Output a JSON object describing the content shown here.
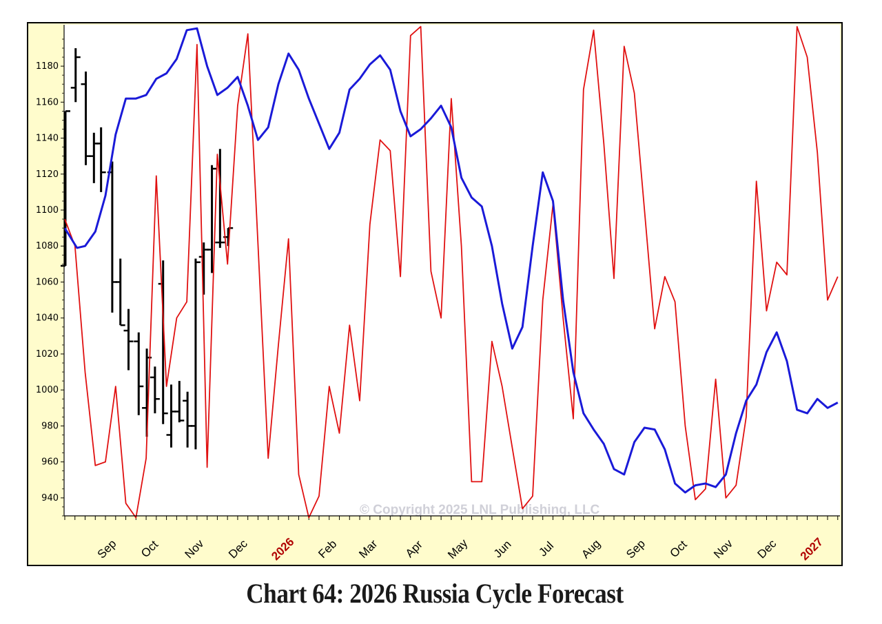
{
  "caption": "Chart 64: 2026 Russia Cycle Forecast",
  "copyright": "© Copyright 2025 LNL Publishing, LLC",
  "colors": {
    "panel_bg": "#fffccc",
    "plot_bg": "#ffffff",
    "cycle_blue": "#1a1ad8",
    "cycle_red": "#e01010",
    "price_bars": "#000000",
    "year_label": "#b00000"
  },
  "chart_data": {
    "type": "line",
    "ylim": [
      930,
      1203
    ],
    "yticks": [
      940,
      960,
      980,
      1000,
      1020,
      1040,
      1060,
      1080,
      1100,
      1120,
      1140,
      1160,
      1180
    ],
    "x_unit": "weeks from 2025-08-01",
    "xlim": [
      0,
      77
    ],
    "month_labels": [
      {
        "label": "Sep",
        "x": 4.4,
        "year": false
      },
      {
        "label": "Oct",
        "x": 8.6,
        "year": false
      },
      {
        "label": "Nov",
        "x": 13.0,
        "year": false
      },
      {
        "label": "Dec",
        "x": 17.3,
        "year": false
      },
      {
        "label": "2026",
        "x": 21.7,
        "year": true
      },
      {
        "label": "Feb",
        "x": 26.1,
        "year": false
      },
      {
        "label": "Mar",
        "x": 30.1,
        "year": false
      },
      {
        "label": "Apr",
        "x": 34.6,
        "year": false
      },
      {
        "label": "May",
        "x": 38.9,
        "year": false
      },
      {
        "label": "Jun",
        "x": 43.3,
        "year": false
      },
      {
        "label": "Jul",
        "x": 47.6,
        "year": false
      },
      {
        "label": "Aug",
        "x": 52.0,
        "year": false
      },
      {
        "label": "Sep",
        "x": 56.4,
        "year": false
      },
      {
        "label": "Oct",
        "x": 60.6,
        "year": false
      },
      {
        "label": "Nov",
        "x": 65.0,
        "year": false
      },
      {
        "label": "Dec",
        "x": 69.3,
        "year": false
      },
      {
        "label": "2027",
        "x": 73.7,
        "year": true
      }
    ],
    "series": [
      {
        "color": "#1a1ad8",
        "line_width": 3,
        "x": [
          0,
          1.2,
          2,
          3,
          4,
          5,
          6,
          7,
          8,
          9,
          10,
          11,
          12,
          13,
          14,
          15,
          16,
          17,
          18,
          19,
          20,
          21,
          22,
          23,
          24,
          25,
          26,
          27,
          28,
          29,
          30,
          31,
          32,
          33,
          34,
          35,
          36,
          37,
          38,
          39,
          40,
          41,
          42,
          43,
          44,
          45,
          46,
          47,
          48,
          49,
          50,
          51,
          52,
          53,
          54,
          55,
          56,
          57,
          58,
          59,
          60,
          61,
          62,
          63,
          64,
          65,
          66,
          67,
          68,
          69,
          70,
          71,
          72,
          73,
          74,
          75,
          76
        ],
        "values": [
          1090,
          1079,
          1080,
          1088,
          1108,
          1142,
          1162,
          1162,
          1164,
          1173,
          1176,
          1184,
          1200,
          1201,
          1180,
          1164,
          1168,
          1174,
          1158,
          1139,
          1146,
          1170,
          1187,
          1178,
          1162,
          1148,
          1134,
          1143,
          1167,
          1173,
          1181,
          1186,
          1178,
          1155,
          1141,
          1145,
          1151,
          1158,
          1146,
          1118,
          1107,
          1102,
          1080,
          1048,
          1023,
          1035,
          1080,
          1121,
          1105,
          1050,
          1010,
          987,
          978,
          970,
          956,
          953,
          971,
          979,
          978,
          967,
          948,
          943,
          947,
          948,
          946,
          953,
          976,
          994,
          1003,
          1021,
          1032,
          1016,
          989,
          987,
          995,
          990,
          993
        ]
      },
      {
        "color": "#e01010",
        "line_width": 1.8,
        "x": [
          0,
          1,
          2,
          3,
          4,
          5,
          6,
          7,
          8,
          9,
          10,
          11,
          12,
          13,
          14,
          15,
          16,
          17,
          18,
          19,
          20,
          21,
          22,
          23,
          24,
          25,
          26,
          27,
          28,
          29,
          30,
          31,
          32,
          33,
          34,
          35,
          36,
          37,
          38,
          39,
          40,
          41,
          42,
          43,
          44,
          45,
          46,
          47,
          48,
          49,
          50,
          51,
          52,
          53,
          54,
          55,
          56,
          57,
          58,
          59,
          60,
          61,
          62,
          63,
          64,
          65,
          66,
          67,
          68,
          69,
          70,
          71,
          72,
          73,
          74,
          75,
          76
        ],
        "values": [
          1095,
          1080,
          1010,
          958,
          960,
          1002,
          937,
          929,
          962,
          1119,
          1002,
          1040,
          1049,
          1192,
          957,
          1131,
          1070,
          1158,
          1198,
          1081,
          962,
          1025,
          1084,
          953,
          929,
          941,
          1002,
          976,
          1036,
          994,
          1092,
          1139,
          1133,
          1063,
          1197,
          1202,
          1066,
          1040,
          1162,
          1080,
          949,
          949,
          1027,
          1002,
          968,
          934,
          941,
          1050,
          1103,
          1040,
          984,
          1167,
          1200,
          1137,
          1062,
          1191,
          1165,
          1100,
          1034,
          1063,
          1049,
          980,
          939,
          945,
          1006,
          940,
          947,
          985,
          1116,
          1044,
          1071,
          1064,
          1202,
          1185,
          1132,
          1050,
          1063
        ]
      }
    ],
    "price_bars": [
      {
        "x": 0.0,
        "high": 1155,
        "low": 1069,
        "open": 1069,
        "close": 1155
      },
      {
        "x": 1.0,
        "high": 1190,
        "low": 1160,
        "open": 1168,
        "close": 1185
      },
      {
        "x": 2.0,
        "high": 1177,
        "low": 1125,
        "open": 1170,
        "close": 1130
      },
      {
        "x": 2.8,
        "high": 1143,
        "low": 1115,
        "open": 1130,
        "close": 1137
      },
      {
        "x": 3.5,
        "high": 1146,
        "low": 1110,
        "open": 1137,
        "close": 1121
      },
      {
        "x": 4.6,
        "high": 1127,
        "low": 1043,
        "open": 1121,
        "close": 1060
      },
      {
        "x": 5.4,
        "high": 1073,
        "low": 1036,
        "open": 1060,
        "close": 1036
      },
      {
        "x": 6.2,
        "high": 1045,
        "low": 1011,
        "open": 1033,
        "close": 1027
      },
      {
        "x": 7.2,
        "high": 1032,
        "low": 986,
        "open": 1027,
        "close": 1002
      },
      {
        "x": 8.0,
        "high": 1023,
        "low": 974,
        "open": 990,
        "close": 1018
      },
      {
        "x": 8.8,
        "high": 1013,
        "low": 987,
        "open": 1007,
        "close": 995
      },
      {
        "x": 9.6,
        "high": 1072,
        "low": 981,
        "open": 1059,
        "close": 987
      },
      {
        "x": 10.4,
        "high": 1003,
        "low": 968,
        "open": 975,
        "close": 988
      },
      {
        "x": 11.2,
        "high": 1005,
        "low": 982,
        "open": 988,
        "close": 983
      },
      {
        "x": 12.0,
        "high": 999,
        "low": 968,
        "open": 994,
        "close": 980
      },
      {
        "x": 12.8,
        "high": 1073,
        "low": 967,
        "open": 980,
        "close": 1071
      },
      {
        "x": 13.6,
        "high": 1082,
        "low": 1053,
        "open": 1074,
        "close": 1078
      },
      {
        "x": 14.4,
        "high": 1125,
        "low": 1065,
        "open": 1078,
        "close": 1123
      },
      {
        "x": 15.2,
        "high": 1134,
        "low": 1079,
        "open": 1082,
        "close": 1082
      },
      {
        "x": 16.0,
        "high": 1090,
        "low": 1080,
        "open": 1085,
        "close": 1090
      }
    ]
  }
}
